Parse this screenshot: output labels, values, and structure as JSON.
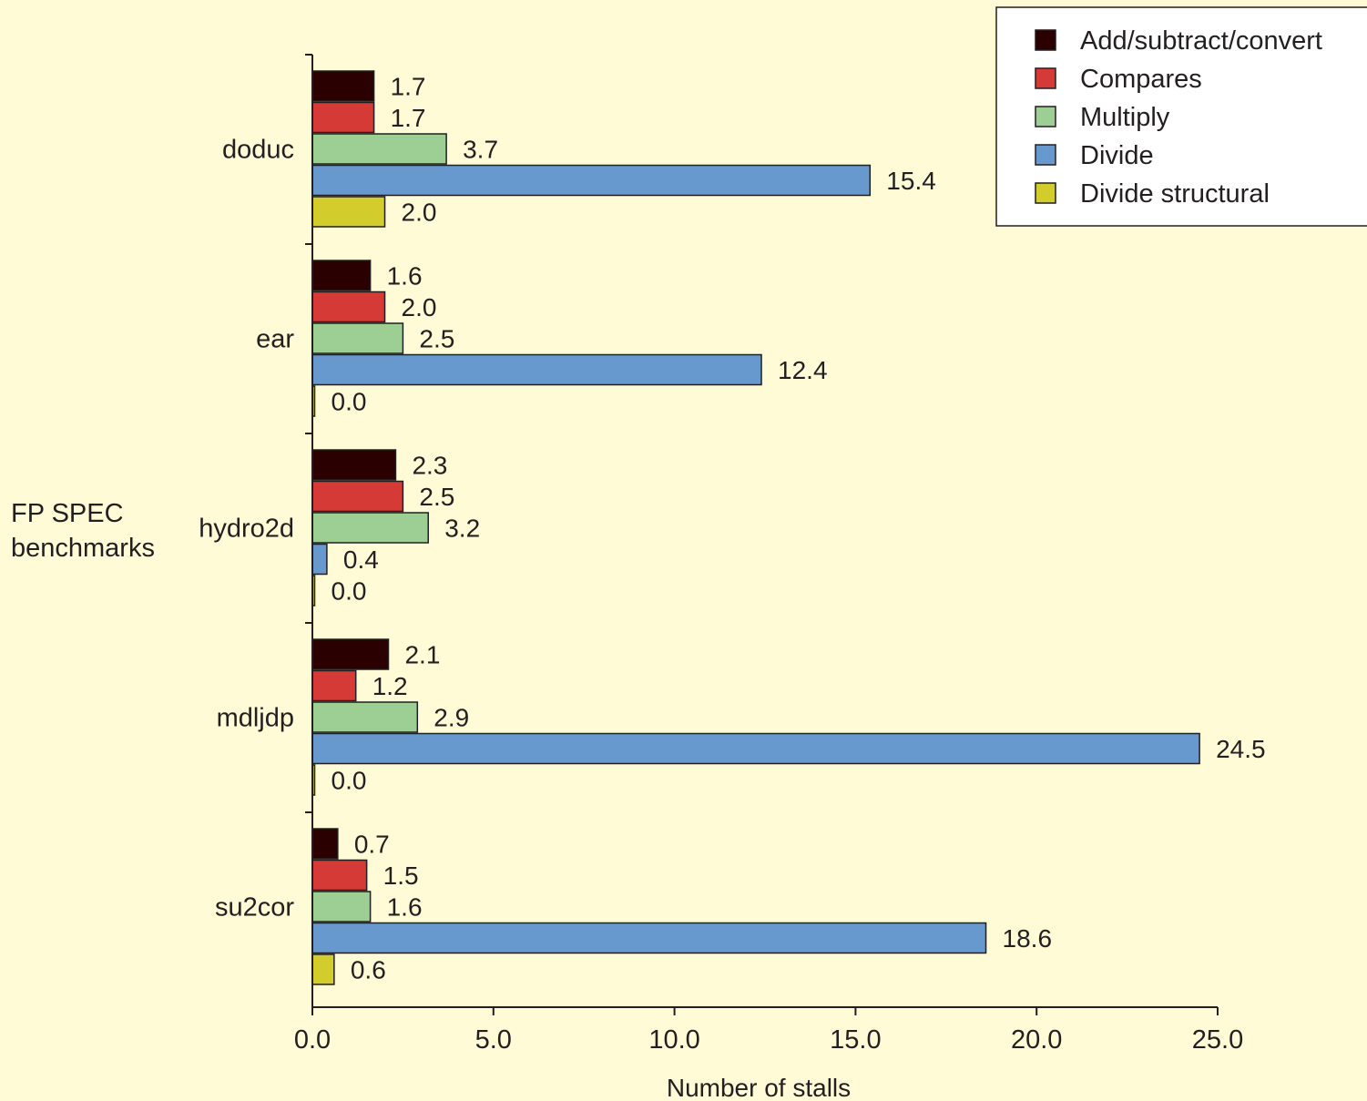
{
  "chart_data": {
    "type": "bar",
    "orientation": "horizontal",
    "categories": [
      "doduc",
      "ear",
      "hydro2d",
      "mdljdp",
      "su2cor"
    ],
    "series": [
      {
        "name": "Add/subtract/convert",
        "color": "#2a0000",
        "values": [
          1.7,
          1.6,
          2.3,
          2.1,
          0.7
        ],
        "labels": [
          "1.7",
          "1.6",
          "2.3",
          "2.1",
          "0.7"
        ]
      },
      {
        "name": "Compares",
        "color": "#d63a36",
        "values": [
          1.7,
          2.0,
          2.5,
          1.2,
          1.5
        ],
        "labels": [
          "1.7",
          "2.0",
          "2.5",
          "1.2",
          "1.5"
        ]
      },
      {
        "name": "Multiply",
        "color": "#9dcf95",
        "values": [
          3.7,
          2.5,
          3.2,
          2.9,
          1.6
        ],
        "labels": [
          "3.7",
          "2.5",
          "3.2",
          "2.9",
          "1.6"
        ]
      },
      {
        "name": "Divide",
        "color": "#6799cf",
        "values": [
          15.4,
          12.4,
          0.4,
          24.5,
          18.6
        ],
        "labels": [
          "15.4",
          "12.4",
          "0.4",
          "24.5",
          "18.6"
        ]
      },
      {
        "name": "Divide structural",
        "color": "#d2cc2c",
        "values": [
          2.0,
          0.0,
          0.0,
          0.0,
          0.6
        ],
        "labels": [
          "2.0",
          "0.0",
          "0.0",
          "0.0",
          "0.6"
        ]
      }
    ],
    "xlabel": "Number of stalls",
    "ylabel": [
      "FP SPEC",
      "benchmarks"
    ],
    "xlim": [
      0,
      25
    ],
    "xticks": [
      "0.0",
      "5.0",
      "10.0",
      "15.0",
      "20.0",
      "25.0"
    ],
    "grid": false,
    "legend": "top-right",
    "background": "#fefbd6"
  }
}
